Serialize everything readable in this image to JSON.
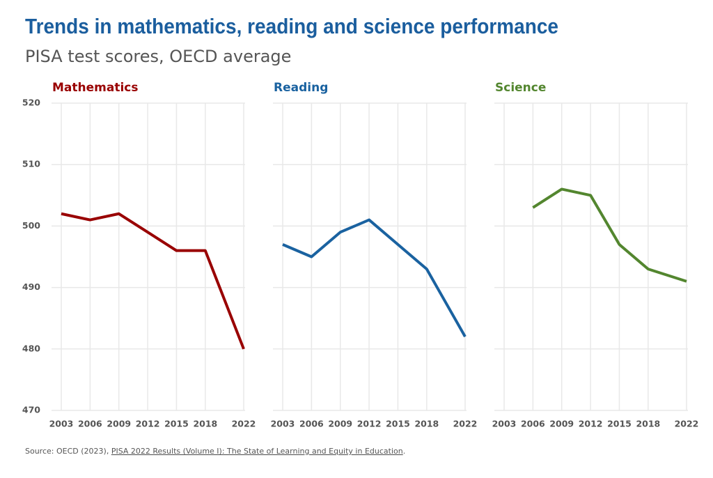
{
  "title": "Trends in mathematics, reading and science performance",
  "subtitle": "PISA test scores, OECD average",
  "source": {
    "prefix": "Source: OECD (2023), ",
    "link": "PISA 2022 Results (Volume I): The State of Learning and Equity in Education",
    "suffix": "."
  },
  "chart_data": [
    {
      "type": "line",
      "title": "Mathematics",
      "color": "#990000",
      "x": [
        2003,
        2006,
        2009,
        2012,
        2015,
        2018,
        2022
      ],
      "values": [
        502,
        501,
        502,
        499,
        496,
        496,
        480
      ],
      "xlim": [
        2003,
        2022
      ],
      "xticks": [
        2003,
        2006,
        2009,
        2012,
        2015,
        2018,
        2022
      ],
      "ylim": [
        470,
        520
      ],
      "yticks": [
        470,
        480,
        490,
        500,
        510,
        520
      ],
      "grid": true
    },
    {
      "type": "line",
      "title": "Reading",
      "color": "#1a62a0",
      "x": [
        2003,
        2006,
        2009,
        2012,
        2015,
        2018,
        2022
      ],
      "values": [
        497,
        495,
        499,
        501,
        497,
        493,
        482
      ],
      "xlim": [
        2003,
        2022
      ],
      "xticks": [
        2003,
        2006,
        2009,
        2012,
        2015,
        2018,
        2022
      ],
      "ylim": [
        470,
        520
      ],
      "yticks": [
        470,
        480,
        490,
        500,
        510,
        520
      ],
      "grid": true
    },
    {
      "type": "line",
      "title": "Science",
      "color": "#53862f",
      "x": [
        2006,
        2009,
        2012,
        2015,
        2018,
        2022
      ],
      "values": [
        503,
        506,
        505,
        497,
        493,
        491
      ],
      "xlim": [
        2003,
        2022
      ],
      "xticks": [
        2003,
        2006,
        2009,
        2012,
        2015,
        2018,
        2022
      ],
      "ylim": [
        470,
        520
      ],
      "yticks": [
        470,
        480,
        490,
        500,
        510,
        520
      ],
      "grid": true
    }
  ]
}
